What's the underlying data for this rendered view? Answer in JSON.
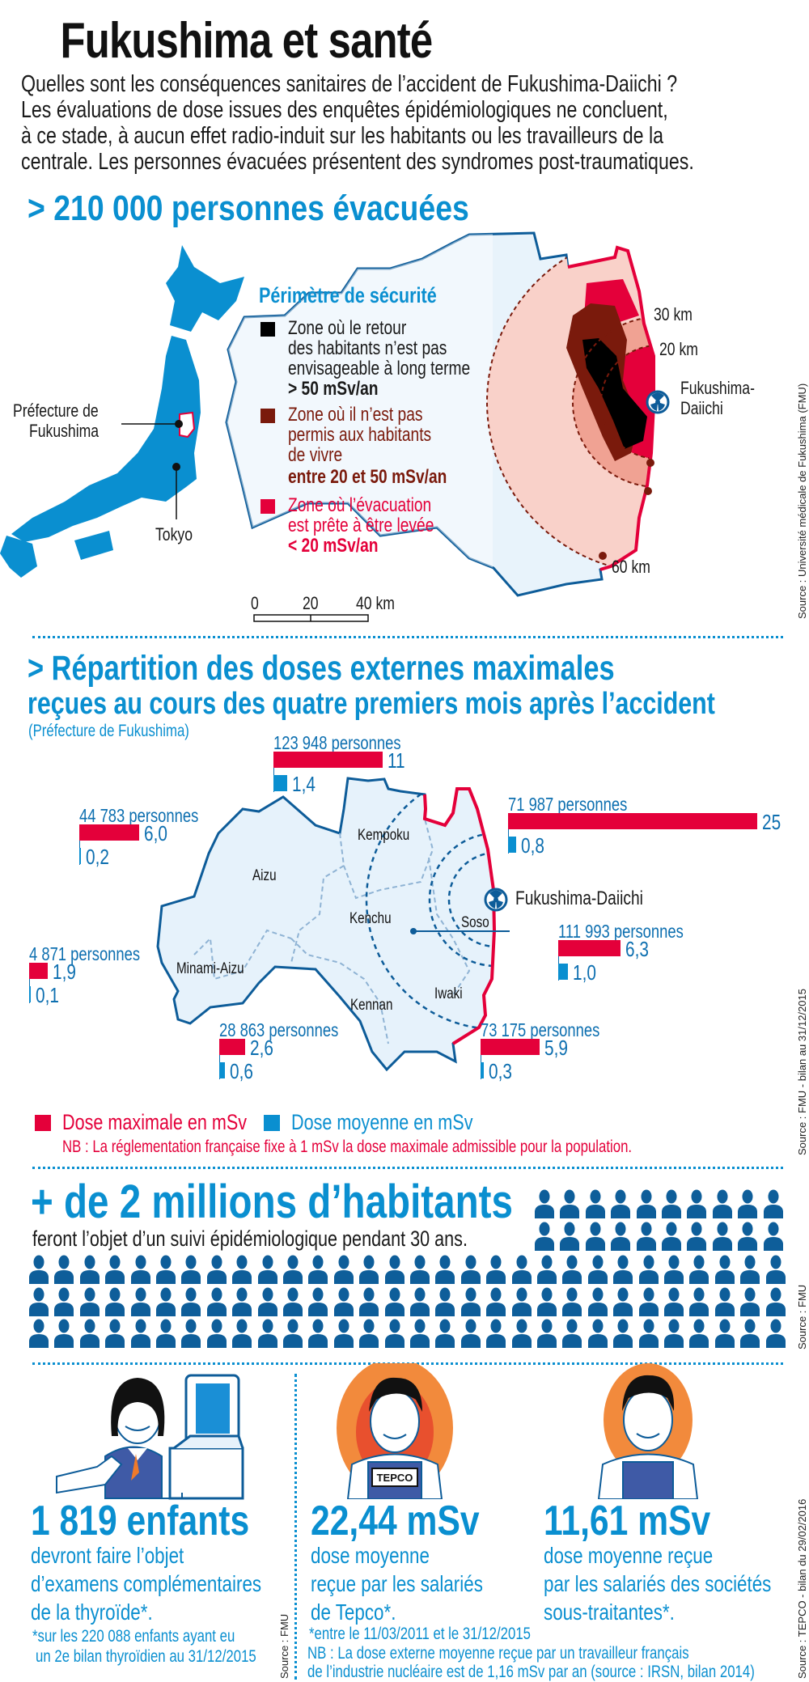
{
  "title": "Fukushima et santé",
  "intro": [
    "Quelles sont les conséquences sanitaires de l’accident de Fukushima-Daiichi ?",
    "Les évaluations de dose issues des enquêtes épidémiologiques ne concluent,",
    "à ce stade, à aucun effet radio-induit sur les habitants ou les travailleurs de la",
    "centrale. Les personnes évacuées présentent des syndromes post-traumatiques."
  ],
  "evacuation": {
    "heading": "> 210 000 personnes évacuées",
    "prefecture_label": [
      "Préfecture de",
      "Fukushima"
    ],
    "tokyo_label": "Tokyo",
    "legend_title": "Périmètre de sécurité",
    "zones": [
      {
        "lines": [
          "Zone où le retour",
          "des habitants n’est pas",
          "envisageable à long terme"
        ],
        "value": "> 50 mSv/an",
        "color": "#000000"
      },
      {
        "lines": [
          "Zone où il n’est pas",
          "permis aux habitants",
          "de vivre"
        ],
        "value": "entre 20 et 50 mSv/an",
        "color": "#7a1a0c"
      },
      {
        "lines": [
          "Zone où l’évacuation",
          "est prête à être levée"
        ],
        "value": "< 20 mSv/an",
        "color": "#e4003a"
      }
    ],
    "radius_labels": {
      "r30": "30 km",
      "r20": "20 km",
      "r60": "60 km"
    },
    "plant_label": [
      "Fukushima-",
      "Daiichi"
    ],
    "scale_labels": [
      "0",
      "20",
      "40 km"
    ],
    "source": "Source : Université médicale de Fukushima (FMU)"
  },
  "doses": {
    "heading_line1": "> Répartition des doses externes maximales",
    "heading_line2": "reçues au cours des quatre premiers mois après l’accident",
    "subtitle": "(Préfecture de Fukushima)",
    "groups": [
      {
        "people": "123 948 personnes",
        "max": "11",
        "mean": "1,4"
      },
      {
        "people": "44 783 personnes",
        "max": "6,0",
        "mean": "0,2"
      },
      {
        "people": "71 987 personnes",
        "max": "25",
        "mean": "0,8"
      },
      {
        "people": "4 871 personnes",
        "max": "1,9",
        "mean": "0,1"
      },
      {
        "people": "111 993 personnes",
        "max": "6,3",
        "mean": "1,0"
      },
      {
        "people": "28 863 personnes",
        "max": "2,6",
        "mean": "0,6"
      },
      {
        "people": "73 175 personnes",
        "max": "5,9",
        "mean": "0,3"
      }
    ],
    "regions": {
      "kempoku": "Kempoku",
      "aizu": "Aizu",
      "kenchu": "Kenchu",
      "soso": "Soso",
      "minami_aizu": "Minami-Aizu",
      "iwaki": "Iwaki",
      "kennan": "Kennan"
    },
    "plant_label": "Fukushima-Daiichi",
    "legend_max": "Dose maximale en mSv",
    "legend_mean": "Dose moyenne en mSv",
    "note": "NB : La réglementation française fixe à 1 mSv la dose maximale admissible pour la population.",
    "source": "Source : FMU - bilan au 31/12/2015",
    "colors": {
      "max": "#e4003a",
      "mean": "#0a8fd0"
    }
  },
  "monitoring": {
    "heading": "+ de 2 millions d’habitants",
    "subline": "feront l’objet d’un suivi épidémiologique pendant 30 ans.",
    "source": "Source : FMU"
  },
  "children": {
    "figure": "1 819 enfants",
    "lines": [
      "devront faire l’objet",
      "d’examens complémentaires",
      "de la thyroïde*."
    ],
    "footnote": [
      "*sur les 220 088 enfants ayant eu",
      "un 2e bilan thyroïdien au 31/12/2015"
    ],
    "source": "Source : FMU"
  },
  "workers": {
    "tepco": {
      "figure": "22,44 mSv",
      "lines": [
        "dose moyenne",
        "reçue par les salariés",
        "de Tepco*."
      ],
      "badge": "TEPCO"
    },
    "subcontractors": {
      "figure": "11,61 mSv",
      "lines": [
        "dose moyenne reçue",
        "par les salariés des sociétés",
        "sous-traitantes*."
      ]
    },
    "footnote": "*entre le 11/03/2011 et le 31/12/2015",
    "note": [
      "NB : La dose externe moyenne reçue par un travailleur français",
      "de l’industrie nucléaire est de 1,16 mSv par an (source : IRSN, bilan 2014)"
    ],
    "source": "Source : TEPCO - bilan du 29/02/2016"
  }
}
